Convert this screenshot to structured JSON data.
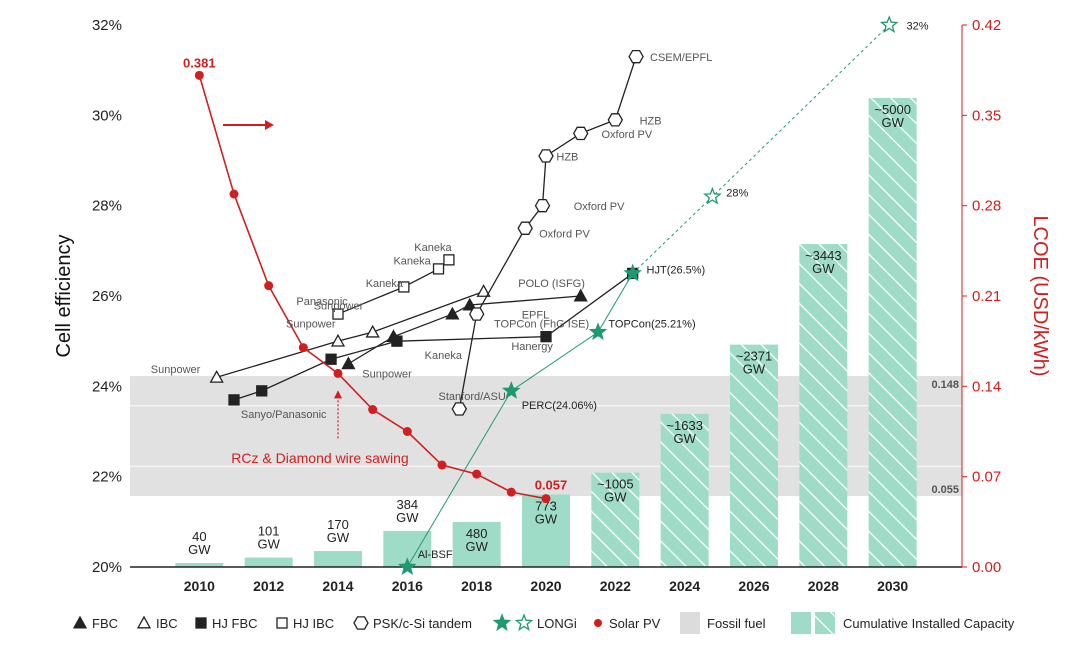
{
  "chart_data": {
    "type": "combo",
    "title": "",
    "left_axis": {
      "label": "Cell efficiency",
      "min": 20,
      "max": 32,
      "ticks": [
        "20%",
        "22%",
        "24%",
        "26%",
        "28%",
        "30%",
        "32%"
      ]
    },
    "right_axis": {
      "label": "LCOE (USD/kWh)",
      "min": 0,
      "max": 0.42,
      "ticks": [
        "0.00",
        "0.07",
        "0.14",
        "0.21",
        "0.28",
        "0.35",
        "0.42"
      ]
    },
    "x_axis": {
      "min": 2008,
      "max": 2032,
      "ticks": [
        "2010",
        "2012",
        "2014",
        "2016",
        "2018",
        "2020",
        "2022",
        "2024",
        "2026",
        "2028",
        "2030"
      ]
    },
    "colors": {
      "red": "#d01f1f",
      "green": "#1f9a6f",
      "bar": "#9fdcc8",
      "bar_hatch": "#ffffff",
      "fossil": "#dcdcdc",
      "dark": "#222222"
    },
    "fossil_band": {
      "min": 0.055,
      "max": 0.148,
      "label_min": "0.055",
      "label_max": "0.148"
    },
    "capacity_bars": [
      {
        "year": 2010,
        "value": 40,
        "label": "40\nGW",
        "projected": false
      },
      {
        "year": 2012,
        "value": 101,
        "label": "101\nGW",
        "projected": false
      },
      {
        "year": 2014,
        "value": 170,
        "label": "170\nGW",
        "projected": false
      },
      {
        "year": 2016,
        "value": 384,
        "label": "384\nGW",
        "projected": false
      },
      {
        "year": 2018,
        "value": 480,
        "label": "480\nGW",
        "projected": false
      },
      {
        "year": 2020,
        "value": 773,
        "label": "773\nGW",
        "projected": false
      },
      {
        "year": 2022,
        "value": 1005,
        "label": "~1005\nGW",
        "projected": true
      },
      {
        "year": 2024,
        "value": 1633,
        "label": "~1633\nGW",
        "projected": true
      },
      {
        "year": 2026,
        "value": 2371,
        "label": "~2371\nGW",
        "projected": true
      },
      {
        "year": 2028,
        "value": 3443,
        "label": "~3443\nGW",
        "projected": true
      },
      {
        "year": 2030,
        "value": 5000,
        "label": "~5000\nGW",
        "projected": true
      }
    ],
    "solar_lcoe": {
      "name": "Solar PV",
      "points": [
        [
          2010,
          0.381
        ],
        [
          2011,
          0.289
        ],
        [
          2012,
          0.218
        ],
        [
          2013,
          0.17
        ],
        [
          2014,
          0.15
        ],
        [
          2015,
          0.122
        ],
        [
          2016,
          0.105
        ],
        [
          2017,
          0.079
        ],
        [
          2018,
          0.072
        ],
        [
          2019,
          0.058
        ],
        [
          2020,
          0.053
        ]
      ],
      "start_label": "0.381",
      "end_label": "0.057"
    },
    "rcz_annotation": "RCz & Diamond wire sawing",
    "series": [
      {
        "name": "FBC",
        "marker": "tri-filled",
        "points": [
          [
            2014.3,
            24.5
          ],
          [
            2015.6,
            25.1
          ],
          [
            2017.3,
            25.6
          ],
          [
            2017.8,
            25.8
          ],
          [
            2021,
            26
          ]
        ],
        "labels": [
          {
            "text": "Sunpower",
            "x": 2014.7,
            "y": 24.2
          },
          {
            "text": "Kaneka",
            "x": 2016.5,
            "y": 24.6
          }
        ]
      },
      {
        "name": "IBC",
        "marker": "tri-open",
        "points": [
          [
            2010.5,
            24.2
          ],
          [
            2014,
            25
          ],
          [
            2015,
            25.2
          ],
          [
            2018.2,
            26.1
          ]
        ],
        "labels": [
          {
            "text": "Sunpower",
            "x": 2008.6,
            "y": 24.3
          },
          {
            "text": "Sunpower",
            "x": 2012.5,
            "y": 25.3
          },
          {
            "text": "Sunpower",
            "x": 2013.3,
            "y": 25.7
          },
          {
            "text": "POLO (ISFG)",
            "x": 2019.2,
            "y": 26.2
          }
        ]
      },
      {
        "name": "HJ FBC",
        "marker": "sq-filled",
        "points": [
          [
            2011,
            23.7
          ],
          [
            2011.8,
            23.9
          ],
          [
            2013.8,
            24.6
          ],
          [
            2015.7,
            25
          ],
          [
            2020,
            25.1
          ],
          [
            2022.5,
            26.5
          ]
        ],
        "labels": [
          {
            "text": "Sanyo/Panasonic",
            "x": 2011.2,
            "y": 23.3
          },
          {
            "text": "Hanergy",
            "x": 2019,
            "y": 24.8
          },
          {
            "text": "TOPCon (FhG ISE)",
            "x": 2018.5,
            "y": 25.3
          }
        ]
      },
      {
        "name": "HJ IBC",
        "marker": "sq-open",
        "points": [
          [
            2014,
            25.6
          ],
          [
            2015.9,
            26.2
          ],
          [
            2016.9,
            26.6
          ],
          [
            2017.2,
            26.8
          ]
        ],
        "labels": [
          {
            "text": "Panasonic",
            "x": 2012.8,
            "y": 25.8
          },
          {
            "text": "Kaneka",
            "x": 2014.8,
            "y": 26.2
          },
          {
            "text": "Kaneka",
            "x": 2015.6,
            "y": 26.7
          },
          {
            "text": "Kaneka",
            "x": 2016.2,
            "y": 27
          }
        ]
      },
      {
        "name": "PSK/c-Si tandem",
        "marker": "hex-open",
        "points": [
          [
            2017.5,
            23.5
          ],
          [
            2018,
            25.6
          ],
          [
            2019.4,
            27.5
          ],
          [
            2019.9,
            28
          ],
          [
            2020,
            29.1
          ],
          [
            2021,
            29.6
          ],
          [
            2022,
            29.9
          ],
          [
            2022.6,
            31.3
          ]
        ],
        "labels": [
          {
            "text": "Stanford/ASU",
            "x": 2016.9,
            "y": 23.7
          },
          {
            "text": "EPFL",
            "x": 2019.3,
            "y": 25.5
          },
          {
            "text": "Oxford PV",
            "x": 2019.8,
            "y": 27.3
          },
          {
            "text": "Oxford PV",
            "x": 2020.8,
            "y": 27.9
          },
          {
            "text": "HZB",
            "x": 2020.3,
            "y": 29
          },
          {
            "text": "Oxford PV",
            "x": 2021.6,
            "y": 29.5
          },
          {
            "text": "HZB",
            "x": 2022.7,
            "y": 29.8
          },
          {
            "text": "CSEM/EPFL",
            "x": 2023,
            "y": 31.2
          }
        ]
      },
      {
        "name": "LONGi",
        "marker": "star",
        "points": [
          [
            2016,
            20
          ],
          [
            2019,
            23.9
          ],
          [
            2021.5,
            25.2
          ],
          [
            2022.5,
            26.5
          ],
          [
            2024.8,
            28.2
          ],
          [
            2029.9,
            32
          ]
        ],
        "projected_from_index": 4,
        "labels": [
          {
            "text": "Al-BSF",
            "x": 2016.3,
            "y": 20.2
          },
          {
            "text": "PERC(24.06%)",
            "x": 2019.3,
            "y": 23.5
          },
          {
            "text": "TOPCon(25.21%)",
            "x": 2021.8,
            "y": 25.3
          },
          {
            "text": "HJT(26.5%)",
            "x": 2022.9,
            "y": 26.5
          },
          {
            "text": "28%",
            "x": 2025.2,
            "y": 28.2
          },
          {
            "text": "32%",
            "x": 2030.4,
            "y": 31.9
          }
        ]
      }
    ],
    "legend": [
      "FBC",
      "IBC",
      "HJ FBC",
      "HJ IBC",
      "PSK/c-Si tandem",
      "LONGi",
      "Solar PV",
      "Fossil fuel",
      "Cumulative Installed Capacity"
    ]
  }
}
